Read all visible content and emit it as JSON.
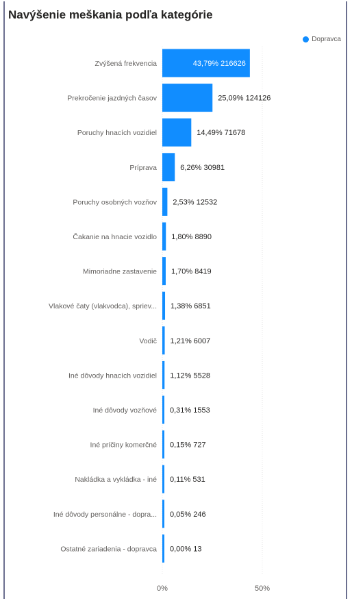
{
  "title": "Navýšenie meškania podľa kategórie",
  "legend": {
    "label": "Dopravca",
    "color": "#118DFF"
  },
  "chart_data": {
    "type": "bar",
    "orientation": "horizontal",
    "title": "Navýšenie meškania podľa kategórie",
    "xlabel": "",
    "ylabel": "",
    "xlim": [
      0,
      100
    ],
    "x_ticks": [
      "0%",
      "50%"
    ],
    "grid": true,
    "legend_position": "top-right",
    "categories": [
      "Zvýšená frekvencia",
      "Prekročenie jazdných časov",
      "Poruchy hnacích vozidiel",
      "Príprava",
      "Poruchy osobných vozňov",
      "Čakanie na hnacie vozidlo",
      "Mimoriadne zastavenie",
      "Vlakové čaty (vlakvodca), spriev...",
      "Vodič",
      "Iné dôvody hnacích vozidiel",
      "Iné dôvody vozňové",
      "Iné príčiny komerčné",
      "Nakládka a vykládka - iné",
      "Iné dôvody personálne - dopra...",
      "Ostatné zariadenia - dopravca"
    ],
    "series": [
      {
        "name": "Dopravca",
        "color": "#118DFF",
        "values": [
          43.79,
          25.09,
          14.49,
          6.26,
          2.53,
          1.8,
          1.7,
          1.38,
          1.21,
          1.12,
          0.31,
          0.15,
          0.11,
          0.05,
          0.0
        ],
        "counts": [
          216626,
          124126,
          71678,
          30981,
          12532,
          8890,
          8419,
          6851,
          6007,
          5528,
          1553,
          727,
          531,
          246,
          13
        ],
        "labels": [
          "43,79% 216626",
          "25,09% 124126",
          "14,49% 71678",
          "6,26% 30981",
          "2,53% 12532",
          "1,80% 8890",
          "1,70% 8419",
          "1,38% 6851",
          "1,21% 6007",
          "1,12% 5528",
          "0,31% 1553",
          "0,15% 727",
          "0,11% 531",
          "0,05% 246",
          "0,00% 13"
        ]
      }
    ]
  }
}
